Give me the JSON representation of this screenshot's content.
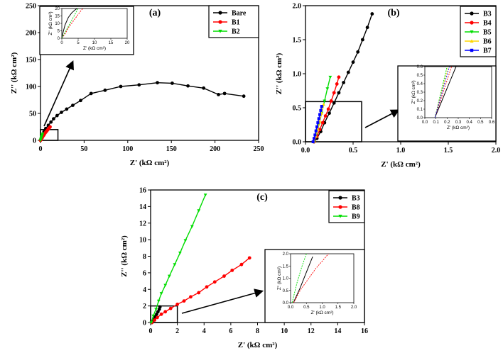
{
  "chart_data": [
    {
      "id": "a",
      "type": "line",
      "panel_label": "(a)",
      "xlabel": "Z' (kΩ cm²)",
      "ylabel": "Z'' (kΩ cm²)",
      "xlim": [
        0,
        250
      ],
      "ylim": [
        0,
        250
      ],
      "xticks": [
        0,
        50,
        100,
        150,
        200,
        250
      ],
      "yticks": [
        0,
        50,
        100,
        150,
        200,
        250
      ],
      "series": [
        {
          "name": "Bare",
          "color": "#000000",
          "marker": "circle",
          "x": [
            0.5,
            2,
            4,
            6,
            9,
            12,
            15,
            19,
            24,
            30,
            37,
            46,
            58,
            74,
            92,
            113,
            134,
            151,
            169,
            187,
            204,
            211,
            233
          ],
          "y": [
            2,
            9,
            16,
            22,
            28,
            34,
            40,
            46,
            52,
            58,
            65,
            74,
            87,
            93,
            100,
            103,
            107,
            106,
            101,
            97,
            85,
            87,
            82
          ]
        },
        {
          "name": "B1",
          "color": "#ff0000",
          "marker": "circle",
          "x": [
            0,
            1,
            2,
            3,
            4,
            5,
            6,
            7,
            8,
            9,
            10,
            11
          ],
          "y": [
            0,
            2,
            5,
            8,
            10,
            13,
            15,
            17,
            19,
            21,
            23,
            25
          ]
        },
        {
          "name": "B2",
          "color": "#00dd00",
          "marker": "triangle-down",
          "x": [
            0,
            0.4,
            0.8,
            1.2,
            1.6,
            2,
            2.4
          ],
          "y": [
            0,
            2,
            4,
            6,
            8,
            10,
            12
          ]
        }
      ],
      "inset": {
        "xlabel": "Z' (kΩ cm²)",
        "ylabel": "Z'' (kΩ cm²)",
        "xlim": [
          0,
          20
        ],
        "ylim": [
          0,
          20
        ],
        "xticks": [
          0,
          5,
          10,
          15,
          20
        ],
        "yticks": [
          0,
          5,
          10,
          15,
          20
        ],
        "series": [
          {
            "name": "Bare",
            "color": "#000000",
            "x": [
              0,
              0.5,
              1,
              2,
              3,
              4,
              6
            ],
            "y": [
              0,
              5,
              9,
              14,
              17,
              19,
              22
            ]
          },
          {
            "name": "B1",
            "color": "#ff0000",
            "x": [
              0,
              1,
              2,
              4,
              6,
              7
            ],
            "y": [
              0,
              3,
              7,
              13,
              19,
              21
            ]
          },
          {
            "name": "B2",
            "color": "#00dd00",
            "x": [
              0,
              1,
              2,
              3,
              4,
              5
            ],
            "y": [
              0,
              4,
              8,
              12,
              16,
              20
            ]
          }
        ]
      }
    },
    {
      "id": "b",
      "type": "line",
      "panel_label": "(b)",
      "xlabel": "Z' (kΩ cm²)",
      "ylabel": "Z'' (kΩ cm²)",
      "xlim": [
        0,
        2.0
      ],
      "ylim": [
        0,
        2.0
      ],
      "xticks": [
        0.0,
        0.5,
        1.0,
        1.5,
        2.0
      ],
      "yticks": [
        0.0,
        0.5,
        1.0,
        1.5,
        2.0
      ],
      "series": [
        {
          "name": "B3",
          "color": "#000000",
          "marker": "circle",
          "x": [
            0.09,
            0.12,
            0.16,
            0.2,
            0.25,
            0.3,
            0.35,
            0.4,
            0.45,
            0.5,
            0.55,
            0.6,
            0.65,
            0.7
          ],
          "y": [
            0,
            0.05,
            0.15,
            0.28,
            0.42,
            0.57,
            0.72,
            0.87,
            1.02,
            1.17,
            1.32,
            1.5,
            1.68,
            1.88
          ]
        },
        {
          "name": "B4",
          "color": "#ff0000",
          "marker": "circle",
          "x": [
            0.09,
            0.12,
            0.15,
            0.18,
            0.21,
            0.24,
            0.27,
            0.3,
            0.33,
            0.35
          ],
          "y": [
            0,
            0.08,
            0.18,
            0.28,
            0.38,
            0.48,
            0.6,
            0.72,
            0.85,
            0.95
          ]
        },
        {
          "name": "B5",
          "color": "#00dd00",
          "marker": "triangle-down",
          "x": [
            0.09,
            0.11,
            0.14,
            0.17,
            0.2,
            0.23,
            0.26
          ],
          "y": [
            0,
            0.1,
            0.25,
            0.42,
            0.6,
            0.78,
            0.95
          ]
        },
        {
          "name": "B6",
          "color": "#ffd700",
          "marker": "triangle-up",
          "x": [
            0.09,
            0.11,
            0.13,
            0.15,
            0.17,
            0.19
          ],
          "y": [
            0,
            0.08,
            0.18,
            0.3,
            0.42,
            0.55
          ]
        },
        {
          "name": "B7",
          "color": "#0000ff",
          "marker": "square",
          "x": [
            0.08,
            0.09,
            0.1,
            0.11,
            0.12,
            0.13,
            0.14,
            0.15,
            0.16,
            0.17
          ],
          "y": [
            0,
            0.05,
            0.1,
            0.16,
            0.22,
            0.28,
            0.34,
            0.4,
            0.46,
            0.52
          ]
        }
      ],
      "inset": {
        "xlabel": "Z' (kΩ cm²)",
        "ylabel": "Z'' (kΩ cm²)",
        "xlim": [
          0,
          0.6
        ],
        "ylim": [
          0,
          0.6
        ],
        "xticks": [
          0.0,
          0.1,
          0.2,
          0.3,
          0.4,
          0.5,
          0.6
        ],
        "yticks": [
          0.0,
          0.1,
          0.2,
          0.3,
          0.4,
          0.5,
          0.6
        ],
        "series": [
          {
            "name": "B3",
            "color": "#000000",
            "x": [
              0.09,
              0.28
            ],
            "y": [
              0,
              0.6
            ]
          },
          {
            "name": "B4",
            "color": "#ff0000",
            "x": [
              0.09,
              0.24
            ],
            "y": [
              0,
              0.6
            ]
          },
          {
            "name": "B5",
            "color": "#00dd00",
            "x": [
              0.09,
              0.2
            ],
            "y": [
              0,
              0.6
            ]
          },
          {
            "name": "B6",
            "color": "#ffd700",
            "x": [
              0.09,
              0.21
            ],
            "y": [
              0,
              0.6
            ]
          },
          {
            "name": "B7",
            "color": "#0000ff",
            "x": [
              0.09,
              0.22
            ],
            "y": [
              0,
              0.6
            ]
          }
        ]
      }
    },
    {
      "id": "c",
      "type": "line",
      "panel_label": "(c)",
      "xlabel": "Z' (kΩ cm²)",
      "ylabel": "Z'' (kΩ cm²)",
      "xlim": [
        0,
        16
      ],
      "ylim": [
        0,
        16
      ],
      "xticks": [
        0,
        2,
        4,
        6,
        8,
        10,
        12,
        14,
        16
      ],
      "yticks": [
        0,
        2,
        4,
        6,
        8,
        10,
        12,
        14,
        16
      ],
      "series": [
        {
          "name": "B3",
          "color": "#000000",
          "marker": "circle",
          "x": [
            0.09,
            0.15,
            0.25,
            0.35,
            0.45,
            0.55,
            0.65,
            0.7
          ],
          "y": [
            0,
            0.15,
            0.4,
            0.7,
            1.0,
            1.3,
            1.6,
            1.88
          ]
        },
        {
          "name": "B8",
          "color": "#ff0000",
          "marker": "circle",
          "x": [
            0.1,
            0.3,
            0.5,
            0.8,
            1.1,
            1.5,
            2.0,
            2.5,
            3.0,
            3.6,
            4.2,
            4.8,
            5.5,
            6.1,
            6.8,
            7.4
          ],
          "y": [
            0,
            0.3,
            0.6,
            1.0,
            1.3,
            1.7,
            2.2,
            2.6,
            3.1,
            3.6,
            4.3,
            4.9,
            5.6,
            6.3,
            7.0,
            7.8
          ]
        },
        {
          "name": "B9",
          "color": "#00dd00",
          "marker": "triangle-down",
          "x": [
            0.05,
            0.2,
            0.4,
            0.6,
            0.8,
            1.1,
            1.4,
            1.8,
            2.2,
            2.6,
            3.1,
            3.6,
            4.1
          ],
          "y": [
            0,
            0.8,
            1.6,
            2.6,
            3.5,
            4.5,
            5.6,
            7.0,
            8.4,
            9.9,
            11.6,
            13.5,
            15.4
          ]
        }
      ],
      "inset": {
        "xlabel": "Z' (kΩ cm²)",
        "ylabel": "Z'' (kΩ cm²)",
        "xlim": [
          0,
          2.0
        ],
        "ylim": [
          0,
          2.0
        ],
        "xticks": [
          0.0,
          0.5,
          1.0,
          1.5,
          2.0
        ],
        "yticks": [
          0.0,
          0.5,
          1.0,
          1.5,
          2.0
        ],
        "series": [
          {
            "name": "B3",
            "color": "#000000",
            "x": [
              0.09,
              0.3,
              0.5,
              0.7
            ],
            "y": [
              0,
              0.6,
              1.25,
              1.88
            ]
          },
          {
            "name": "B8",
            "color": "#ff0000",
            "x": [
              0.1,
              0.3,
              0.55,
              0.8,
              1.0,
              1.2
            ],
            "y": [
              0,
              0.5,
              0.95,
              1.4,
              1.7,
              2.0
            ]
          },
          {
            "name": "B9",
            "color": "#00dd00",
            "x": [
              0.05,
              0.2,
              0.35,
              0.5
            ],
            "y": [
              0,
              0.8,
              1.45,
              2.0
            ]
          }
        ]
      }
    }
  ]
}
